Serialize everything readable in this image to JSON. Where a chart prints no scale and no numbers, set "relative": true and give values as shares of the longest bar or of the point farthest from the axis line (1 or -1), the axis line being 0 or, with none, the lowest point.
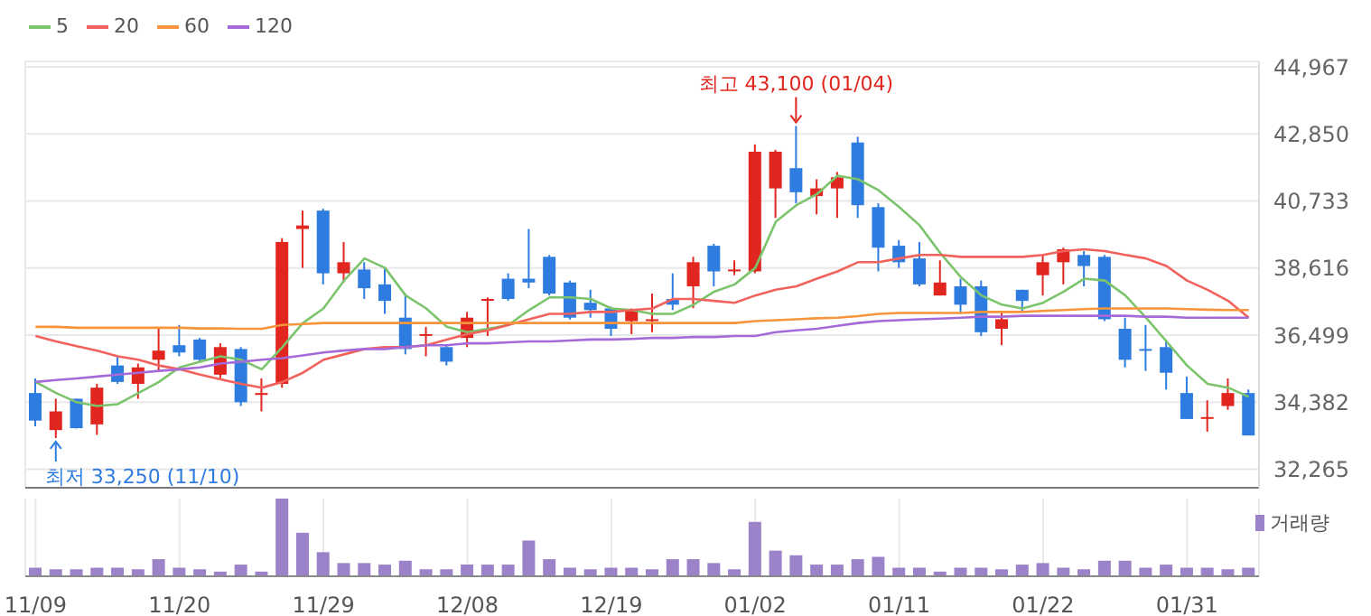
{
  "chart_data": [
    {
      "type": "candlestick",
      "categories": [
        null,
        null,
        null,
        null,
        null,
        null,
        null,
        null,
        null,
        null,
        null,
        null,
        null,
        null,
        null,
        null,
        null,
        null,
        null,
        null,
        null,
        null,
        null,
        null,
        null,
        null,
        null,
        null,
        null,
        null,
        null,
        null,
        null,
        null,
        null,
        null,
        null,
        null,
        null,
        null,
        null,
        null,
        null,
        null,
        null,
        null,
        null,
        null,
        null,
        null,
        null,
        null,
        null,
        null,
        null,
        null,
        null,
        null,
        null,
        null
      ],
      "ohlc": [
        [
          34670,
          35130,
          33620,
          33800
        ],
        [
          33500,
          34490,
          33250,
          34090
        ],
        [
          34490,
          34490,
          33550,
          33560
        ],
        [
          33680,
          34960,
          33350,
          34840
        ],
        [
          35540,
          35830,
          34960,
          35020
        ],
        [
          34960,
          35600,
          34490,
          35480
        ],
        [
          35720,
          36700,
          35370,
          36010
        ],
        [
          36180,
          36820,
          35830,
          35950
        ],
        [
          36360,
          36410,
          35660,
          35720
        ],
        [
          35250,
          36240,
          35130,
          36120
        ],
        [
          36060,
          36120,
          34260,
          34380
        ],
        [
          34610,
          35130,
          34090,
          34670
        ],
        [
          34960,
          39560,
          34840,
          39440
        ],
        [
          39850,
          40430,
          38620,
          39960
        ],
        [
          40430,
          40490,
          38100,
          38450
        ],
        [
          38450,
          39440,
          38160,
          38800
        ],
        [
          38570,
          38800,
          37640,
          37980
        ],
        [
          38100,
          38620,
          37170,
          37580
        ],
        [
          37050,
          37810,
          35890,
          36060
        ],
        [
          36500,
          36760,
          35830,
          36530
        ],
        [
          36120,
          36180,
          35540,
          35660
        ],
        [
          36410,
          37230,
          36120,
          37050
        ],
        [
          37600,
          37690,
          36470,
          37640
        ],
        [
          38280,
          38450,
          37580,
          37640
        ],
        [
          38280,
          39850,
          37980,
          38160
        ],
        [
          38970,
          39030,
          37750,
          37810
        ],
        [
          38160,
          38220,
          36990,
          37050
        ],
        [
          37520,
          37930,
          37050,
          37290
        ],
        [
          37340,
          37400,
          36470,
          36700
        ],
        [
          36940,
          37340,
          36530,
          37290
        ],
        [
          36960,
          37810,
          36590,
          37000
        ],
        [
          37640,
          38450,
          37290,
          37460
        ],
        [
          38040,
          38970,
          37350,
          38800
        ],
        [
          39320,
          39380,
          38040,
          38510
        ],
        [
          38540,
          38860,
          38390,
          38570
        ],
        [
          38510,
          42520,
          38450,
          42290
        ],
        [
          41130,
          42350,
          40200,
          42290
        ],
        [
          41770,
          43100,
          40660,
          41010
        ],
        [
          40890,
          41420,
          40310,
          41130
        ],
        [
          41130,
          41650,
          40200,
          41480
        ],
        [
          42580,
          42760,
          40200,
          40600
        ],
        [
          40540,
          40660,
          38510,
          39260
        ],
        [
          39320,
          39500,
          38620,
          38800
        ],
        [
          38920,
          39440,
          38040,
          38100
        ],
        [
          37750,
          38860,
          37750,
          38160
        ],
        [
          38040,
          38280,
          37170,
          37460
        ],
        [
          38040,
          38220,
          36470,
          36590
        ],
        [
          36700,
          37230,
          36180,
          37000
        ],
        [
          37930,
          37930,
          37230,
          37580
        ],
        [
          38390,
          39030,
          37750,
          38800
        ],
        [
          38800,
          39260,
          38100,
          39210
        ],
        [
          39030,
          39150,
          38040,
          38680
        ],
        [
          38970,
          39030,
          36940,
          37000
        ],
        [
          36700,
          37050,
          35480,
          35720
        ],
        [
          36060,
          36820,
          35370,
          36010
        ],
        [
          36120,
          36360,
          34780,
          35310
        ],
        [
          34670,
          35190,
          33850,
          33850
        ],
        [
          33880,
          34440,
          33450,
          33910
        ],
        [
          34260,
          35130,
          34140,
          34670
        ],
        [
          34670,
          34780,
          33330,
          33330
        ]
      ],
      "series": [
        {
          "name": "5",
          "type": "line",
          "color": "#7cc46c",
          "values": [
            35020,
            34670,
            34380,
            34260,
            34320,
            34670,
            35020,
            35480,
            35660,
            35830,
            35720,
            35420,
            36120,
            36880,
            37340,
            38220,
            38920,
            38620,
            37750,
            37340,
            36760,
            36590,
            36700,
            36820,
            37290,
            37690,
            37690,
            37640,
            37340,
            37290,
            37170,
            37170,
            37460,
            37870,
            38100,
            38620,
            40080,
            40600,
            40950,
            41530,
            41420,
            41070,
            40540,
            39960,
            39090,
            38330,
            37750,
            37460,
            37340,
            37520,
            37870,
            38280,
            38220,
            37750,
            37050,
            36300,
            35540,
            34960,
            34840,
            34550
          ]
        },
        {
          "name": "20",
          "type": "line",
          "color": "#f2625c",
          "values": [
            36470,
            36300,
            36150,
            36010,
            35830,
            35720,
            35540,
            35420,
            35250,
            35100,
            34960,
            34840,
            35020,
            35310,
            35720,
            35890,
            36060,
            36120,
            36120,
            36180,
            36360,
            36530,
            36650,
            36820,
            37000,
            37170,
            37170,
            37230,
            37230,
            37290,
            37340,
            37640,
            37640,
            37580,
            37520,
            37750,
            37930,
            38040,
            38280,
            38510,
            38800,
            38800,
            38920,
            39030,
            39030,
            38970,
            38970,
            38970,
            38970,
            39030,
            39150,
            39210,
            39150,
            39030,
            38920,
            38680,
            38220,
            37930,
            37580,
            37050
          ]
        },
        {
          "name": "60",
          "type": "line",
          "color": "#f7943c",
          "values": [
            36760,
            36760,
            36730,
            36730,
            36730,
            36730,
            36730,
            36730,
            36710,
            36710,
            36700,
            36700,
            36820,
            36850,
            36880,
            36880,
            36880,
            36880,
            36880,
            36880,
            36880,
            36880,
            36880,
            36880,
            36880,
            36880,
            36880,
            36880,
            36880,
            36880,
            36880,
            36880,
            36880,
            36880,
            36880,
            36940,
            36970,
            37000,
            37030,
            37050,
            37100,
            37170,
            37200,
            37200,
            37200,
            37200,
            37230,
            37230,
            37230,
            37260,
            37290,
            37320,
            37340,
            37340,
            37340,
            37340,
            37320,
            37300,
            37290,
            37290
          ]
        },
        {
          "name": "120",
          "type": "line",
          "color": "#a66ad8",
          "values": [
            35020,
            35080,
            35130,
            35190,
            35250,
            35310,
            35370,
            35420,
            35480,
            35600,
            35660,
            35720,
            35770,
            35860,
            35950,
            36010,
            36060,
            36060,
            36120,
            36180,
            36180,
            36240,
            36240,
            36270,
            36300,
            36300,
            36330,
            36360,
            36360,
            36380,
            36410,
            36410,
            36440,
            36440,
            36470,
            36470,
            36590,
            36650,
            36700,
            36790,
            36880,
            36940,
            36970,
            37000,
            37020,
            37050,
            37080,
            37080,
            37110,
            37110,
            37110,
            37110,
            37110,
            37110,
            37080,
            37080,
            37050,
            37050,
            37050,
            37050
          ]
        }
      ],
      "ylim": [
        31680,
        45140
      ],
      "yticks": [
        {
          "value": 32265,
          "label": "32,265"
        },
        {
          "value": 34382,
          "label": "34,382"
        },
        {
          "value": 36499,
          "label": "36,499"
        },
        {
          "value": 38616,
          "label": "38,616"
        },
        {
          "value": 40733,
          "label": "40,733"
        },
        {
          "value": 42850,
          "label": "42,850"
        },
        {
          "value": 44967,
          "label": "44,967"
        }
      ],
      "grid": true,
      "legend": "top left",
      "tick_labels": "y",
      "annotations": [
        "최고 43,100 (01/04)",
        "최저 33,250 (11/10)"
      ]
    },
    {
      "type": "bar",
      "relative": true,
      "categories": [
        "11/09",
        null,
        null,
        null,
        null,
        null,
        null,
        "11/20",
        null,
        null,
        null,
        null,
        null,
        null,
        "11/29",
        null,
        null,
        null,
        null,
        null,
        null,
        "12/08",
        null,
        null,
        null,
        null,
        null,
        null,
        "12/19",
        null,
        null,
        null,
        null,
        null,
        null,
        "01/02",
        null,
        null,
        null,
        null,
        null,
        null,
        "01/11",
        null,
        null,
        null,
        null,
        null,
        null,
        "01/22",
        null,
        null,
        null,
        null,
        null,
        null,
        "01/31",
        null,
        null,
        null
      ],
      "series": [
        {
          "name": "거래량",
          "color": "#9c82c8",
          "values": [
            0.11,
            0.09,
            0.09,
            0.11,
            0.11,
            0.09,
            0.22,
            0.11,
            0.09,
            0.06,
            0.15,
            0.06,
            1,
            0.56,
            0.31,
            0.17,
            0.17,
            0.15,
            0.2,
            0.09,
            0.09,
            0.15,
            0.15,
            0.15,
            0.46,
            0.22,
            0.11,
            0.09,
            0.11,
            0.11,
            0.09,
            0.22,
            0.22,
            0.17,
            0.09,
            0.7,
            0.33,
            0.27,
            0.15,
            0.15,
            0.22,
            0.25,
            0.11,
            0.11,
            0.06,
            0.11,
            0.11,
            0.09,
            0.15,
            0.17,
            0.11,
            0.09,
            0.2,
            0.2,
            0.11,
            0.15,
            0.11,
            0.11,
            0.09,
            0.11
          ]
        }
      ],
      "grid": true,
      "legend": "top right",
      "tick_labels": "x"
    }
  ]
}
